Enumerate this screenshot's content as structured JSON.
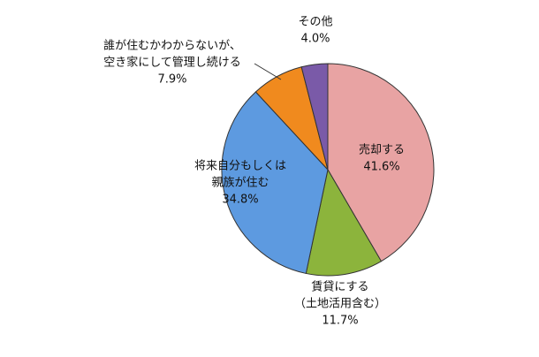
{
  "chart_data": {
    "type": "pie",
    "categories": [
      [
        "売却する"
      ],
      [
        "賃貸にする",
        "（土地活用含む）"
      ],
      [
        "将来自分もしくは",
        "親族が住む"
      ],
      [
        "誰が住むかわからないが、",
        "空き家にして管理し続ける"
      ],
      [
        "その他"
      ]
    ],
    "values": [
      41.6,
      11.7,
      34.8,
      7.9,
      4.0
    ],
    "value_labels": [
      "41.6%",
      "11.7%",
      "34.8%",
      "7.9%",
      "4.0%"
    ],
    "colors": [
      "#e8a3a3",
      "#8cb43c",
      "#5d9ae0",
      "#f08a1e",
      "#7a5aa8"
    ]
  }
}
